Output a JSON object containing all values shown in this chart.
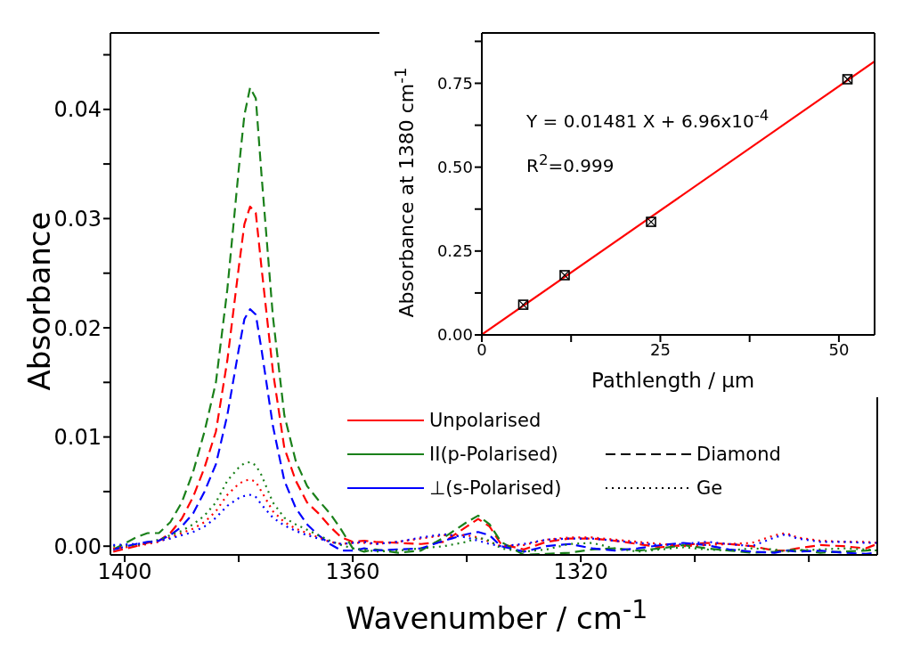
{
  "chart_data": [
    {
      "type": "line",
      "xlabel": "Wavenumber / cm$^{-1}$",
      "ylabel": "Absorbance",
      "x": [
        1402,
        1398,
        1396,
        1394,
        1392,
        1390,
        1388,
        1386,
        1384,
        1382,
        1380,
        1379,
        1378,
        1377,
        1376,
        1374,
        1372,
        1370,
        1368,
        1366,
        1364,
        1362,
        1360,
        1358,
        1356,
        1352,
        1348,
        1344,
        1340,
        1338,
        1336,
        1334,
        1330,
        1326,
        1322,
        1318,
        1314,
        1310,
        1306,
        1302,
        1298,
        1294,
        1290,
        1286,
        1284,
        1282,
        1278,
        1274,
        1270,
        1268
      ],
      "series": [
        {
          "name": "Unpolarised",
          "color": "#ff0000",
          "line_style": "dashed",
          "values": [
            -0.0005,
            0.0,
            0.0003,
            0.0005,
            0.0012,
            0.0025,
            0.0045,
            0.0072,
            0.0105,
            0.017,
            0.0255,
            0.0295,
            0.0311,
            0.0305,
            0.0255,
            0.016,
            0.009,
            0.006,
            0.004,
            0.003,
            0.0018,
            0.0008,
            0.0004,
            0.0005,
            0.0004,
            0.0003,
            0.0002,
            0.0004,
            0.0018,
            0.0025,
            0.0018,
            0.0002,
            -0.0003,
            0.0004,
            0.0007,
            0.0007,
            0.0005,
            0.0002,
            -0.0001,
            0.0001,
            0.0003,
            0.0002,
            0.0,
            -0.0004,
            -0.0004,
            -0.0002,
            0.0001,
            0.0,
            -0.0002,
            0.0002
          ]
        },
        {
          "name": "II(p-Polarised)",
          "color": "#1a801a",
          "line_style": "dashed",
          "values": [
            -0.0003,
            0.0008,
            0.0012,
            0.0012,
            0.0022,
            0.004,
            0.0068,
            0.0105,
            0.015,
            0.0235,
            0.0345,
            0.0395,
            0.042,
            0.041,
            0.034,
            0.021,
            0.012,
            0.0078,
            0.0055,
            0.0042,
            0.003,
            0.0015,
            -0.0002,
            -0.0005,
            -0.0003,
            -0.0006,
            -0.0004,
            0.0008,
            0.0022,
            0.0028,
            0.002,
            0.0004,
            -0.0008,
            -0.0007,
            -0.0006,
            -0.0003,
            -0.0002,
            -0.0004,
            -0.0002,
            0.0001,
            -0.0002,
            -0.0004,
            -0.0006,
            -0.0005,
            -0.0004,
            -0.0003,
            -0.0006,
            -0.0005,
            -0.0004,
            -0.0003
          ]
        },
        {
          "name": "⊥(s-Polarised)",
          "color": "#0000ff",
          "line_style": "dashed",
          "values": [
            -0.0003,
            0.0002,
            0.0004,
            0.0005,
            0.001,
            0.0018,
            0.003,
            0.005,
            0.0075,
            0.012,
            0.018,
            0.0208,
            0.0217,
            0.0212,
            0.018,
            0.011,
            0.006,
            0.0035,
            0.002,
            0.001,
            0.0002,
            -0.0004,
            -0.0004,
            -0.0002,
            -0.0004,
            -0.0003,
            -0.0002,
            0.0005,
            0.0011,
            0.0013,
            0.001,
            0.0,
            -0.0005,
            0.0,
            0.0002,
            -0.0002,
            -0.0004,
            -0.0002,
            0.0001,
            0.0003,
            0.0001,
            -0.0003,
            -0.0005,
            -0.0006,
            -0.0004,
            -0.0005,
            -0.0004,
            -0.0006,
            -0.0007,
            -0.0006
          ]
        },
        {
          "color": "#ff0000",
          "line_style": "dotted",
          "values": [
            -0.0002,
            0.0,
            0.0002,
            0.0004,
            0.0008,
            0.0012,
            0.0016,
            0.0022,
            0.0032,
            0.0047,
            0.0057,
            0.006,
            0.0061,
            0.0059,
            0.005,
            0.0032,
            0.0022,
            0.0016,
            0.0012,
            0.0008,
            0.0004,
            0.0002,
            0.0003,
            0.0003,
            0.0002,
            0.0004,
            0.0007,
            0.001,
            0.001,
            0.0008,
            0.0004,
            0.0,
            0.0001,
            0.0006,
            0.0008,
            0.0008,
            0.0006,
            0.0004,
            0.0002,
            0.0,
            0.0001,
            0.0002,
            0.0003,
            0.001,
            0.0012,
            0.0008,
            0.0005,
            0.0004,
            0.0004,
            0.0003
          ]
        },
        {
          "color": "#1a801a",
          "line_style": "dotted",
          "values": [
            0.0,
            0.0001,
            0.0003,
            0.0006,
            0.001,
            0.0014,
            0.002,
            0.0028,
            0.004,
            0.006,
            0.0072,
            0.0076,
            0.0077,
            0.0074,
            0.0065,
            0.004,
            0.0026,
            0.002,
            0.0015,
            0.001,
            0.0005,
            0.0001,
            -0.0002,
            -0.0003,
            -0.0005,
            -0.0004,
            -0.0002,
            0.0,
            0.0004,
            0.0008,
            0.0005,
            -0.0002,
            -0.0005,
            -0.0003,
            0.0002,
            0.0003,
            -0.0002,
            -0.0005,
            -0.0003,
            -0.0001,
            -0.0003,
            -0.0004,
            -0.0002,
            -0.0003,
            -0.0005,
            -0.0004,
            -0.0003,
            -0.0002,
            -0.0003,
            -0.0004
          ]
        },
        {
          "color": "#0000ff",
          "line_style": "dotted",
          "values": [
            0.0001,
            0.0002,
            0.0003,
            0.0005,
            0.0007,
            0.001,
            0.0013,
            0.0018,
            0.0026,
            0.0037,
            0.0044,
            0.0046,
            0.0047,
            0.0045,
            0.0038,
            0.0026,
            0.0019,
            0.0014,
            0.001,
            0.0007,
            0.0004,
            0.0002,
            0.0003,
            0.0004,
            0.0002,
            0.0004,
            0.0008,
            0.0011,
            0.0008,
            0.0005,
            0.0002,
            0.0,
            0.0002,
            0.0006,
            0.0007,
            0.0007,
            0.0005,
            0.0003,
            0.0001,
            0.0002,
            0.0004,
            0.0002,
            0.0,
            0.0008,
            0.0011,
            0.0007,
            0.0004,
            0.0004,
            0.0003,
            0.0003
          ]
        }
      ],
      "annotations": [
        "Diamond",
        "Ge"
      ],
      "legend": "bottom",
      "xlim": [
        1402.5,
        1268
      ],
      "xticks": [
        1400,
        {
          "value": 1380,
          "label": null
        },
        1360,
        {
          "value": 1340,
          "label": null
        },
        1320,
        {
          "value": 1300,
          "label": null
        },
        {
          "value": 1280,
          "label": null
        }
      ],
      "ylim": [
        -0.0008,
        0.047
      ],
      "yticks": [
        {
          "value": 0,
          "label": "0.00"
        },
        {
          "value": 0.005,
          "label": null
        },
        {
          "value": 0.01,
          "label": "0.01"
        },
        {
          "value": 0.015,
          "label": null
        },
        {
          "value": 0.02,
          "label": "0.02"
        },
        {
          "value": 0.025,
          "label": null
        },
        {
          "value": 0.03,
          "label": "0.03"
        },
        {
          "value": 0.035,
          "label": null
        },
        {
          "value": 0.04,
          "label": "0.04"
        },
        {
          "value": 0.045,
          "label": null
        }
      ]
    },
    {
      "type": "scatter",
      "xlabel": "Pathlength / µm",
      "ylabel": "Absorbance at 1380 cm$^{-1}$",
      "series": [
        {
          "color": "#000000",
          "marker": "square",
          "x": [
            5.8,
            11.6,
            23.7,
            51.2
          ],
          "values": [
            0.09,
            0.178,
            0.337,
            0.762
          ]
        },
        {
          "type": "line",
          "color": "#ff0000",
          "line_style": "solid",
          "x": [
            0,
            55
          ],
          "values": [
            0.001,
            0.815
          ]
        }
      ],
      "annotations": [
        "Y = 0.01481 X + 6.96x10$^{-4}$",
        "R$^{2}$=0.999"
      ],
      "xlim": [
        0,
        55
      ],
      "xticks": [
        0,
        {
          "value": 12.5,
          "label": null
        },
        25,
        {
          "value": 37.5,
          "label": null
        },
        50
      ],
      "ylim": [
        0,
        0.9
      ],
      "yticks": [
        {
          "value": 0,
          "label": "0.00"
        },
        {
          "value": 0.125,
          "label": null
        },
        {
          "value": 0.25,
          "label": "0.25"
        },
        {
          "value": 0.375,
          "label": null
        },
        {
          "value": 0.5,
          "label": "0.50"
        },
        {
          "value": 0.625,
          "label": null
        },
        {
          "value": 0.75,
          "label": "0.75"
        },
        {
          "value": 0.875,
          "label": null
        }
      ]
    }
  ]
}
